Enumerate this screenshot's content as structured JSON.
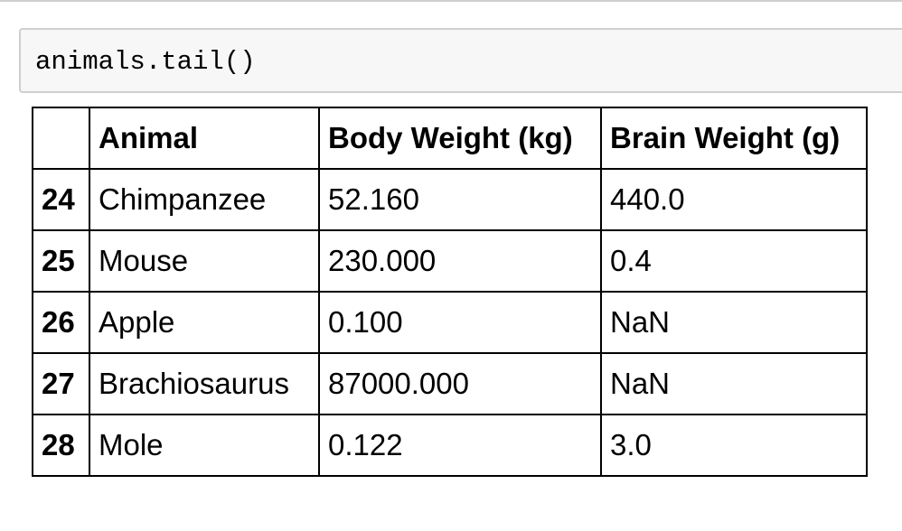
{
  "code_cell": {
    "source": "animals.tail()"
  },
  "dataframe": {
    "columns": [
      "",
      "Animal",
      "Body Weight (kg)",
      "Brain Weight (g)"
    ],
    "rows": [
      {
        "index": "24",
        "animal": "Chimpanzee",
        "body_weight": "52.160",
        "brain_weight": "440.0"
      },
      {
        "index": "25",
        "animal": "Mouse",
        "body_weight": "230.000",
        "brain_weight": "0.4"
      },
      {
        "index": "26",
        "animal": "Apple",
        "body_weight": "0.100",
        "brain_weight": "NaN"
      },
      {
        "index": "27",
        "animal": "Brachiosaurus",
        "body_weight": "87000.000",
        "brain_weight": "NaN"
      },
      {
        "index": "28",
        "animal": "Mole",
        "body_weight": "0.122",
        "brain_weight": "3.0"
      }
    ]
  }
}
